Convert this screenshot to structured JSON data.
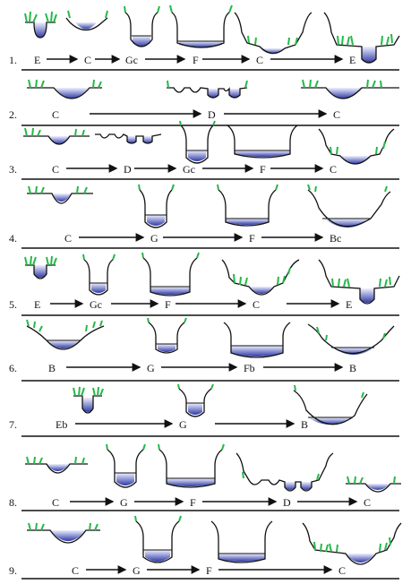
{
  "diagram": {
    "rows": [
      {
        "number": "1.",
        "stages": [
          "E",
          "C",
          "Gc",
          "F",
          "C",
          "E"
        ]
      },
      {
        "number": "2.",
        "stages": [
          "C",
          "D",
          "C"
        ]
      },
      {
        "number": "3.",
        "stages": [
          "C",
          "D",
          "Gc",
          "F",
          "C"
        ]
      },
      {
        "number": "4.",
        "stages": [
          "C",
          "G",
          "F",
          "Bc"
        ]
      },
      {
        "number": "5.",
        "stages": [
          "E",
          "Gc",
          "F",
          "C",
          "E"
        ]
      },
      {
        "number": "6.",
        "stages": [
          "B",
          "G",
          "Fb",
          "B"
        ]
      },
      {
        "number": "7.",
        "stages": [
          "Eb",
          "G",
          "B"
        ]
      },
      {
        "number": "8.",
        "stages": [
          "C",
          "G",
          "F",
          "D",
          "C"
        ]
      },
      {
        "number": "9.",
        "stages": [
          "C",
          "G",
          "F",
          "C"
        ]
      }
    ]
  },
  "colors": {
    "water_top": "#e6e8ff",
    "water_bottom": "#2f3aa6",
    "vegetation": "#26b84a",
    "line": "#1a1a1a"
  }
}
